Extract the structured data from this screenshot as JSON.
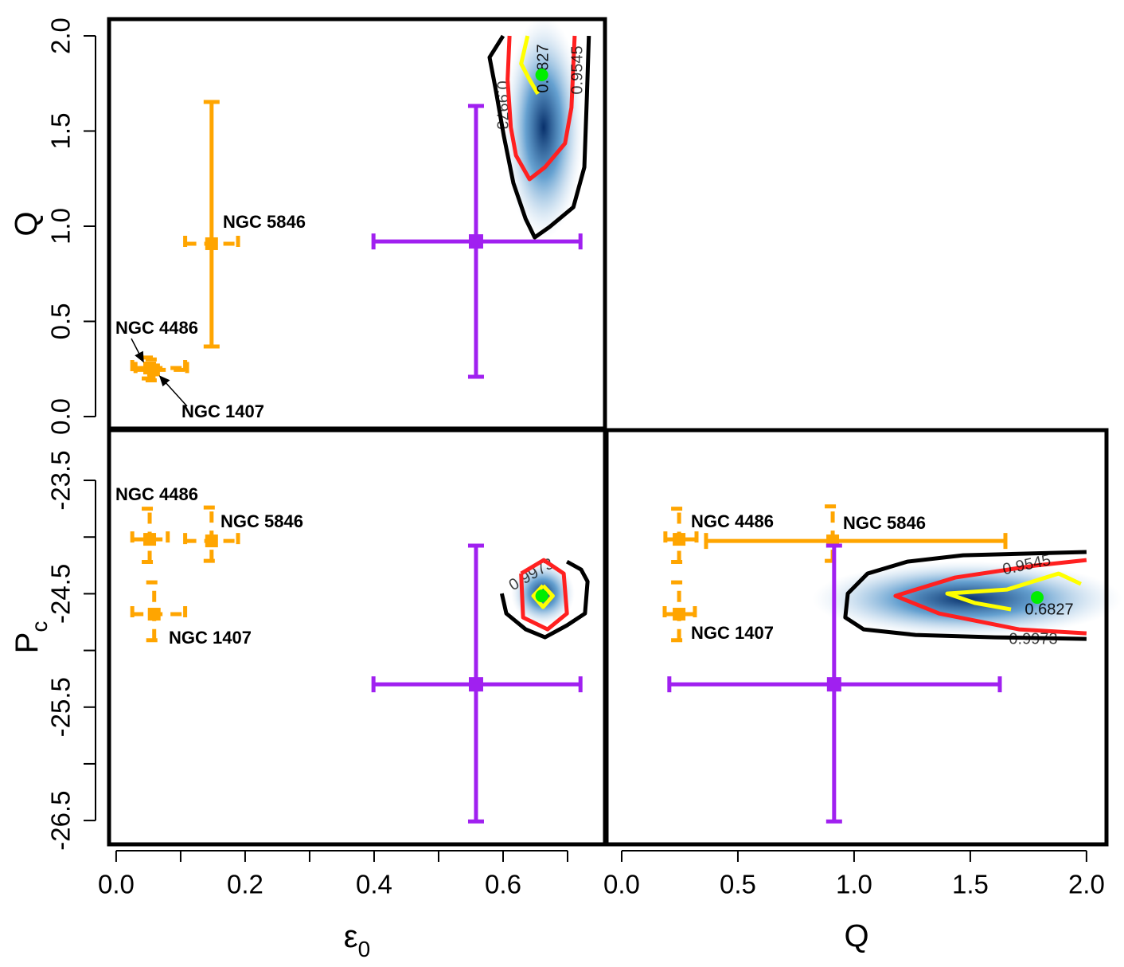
{
  "chart_data": [
    {
      "type": "scatter",
      "ylabel": "Q",
      "xlim": [
        -0.011,
        0.758
      ],
      "ylim": [
        -0.063,
        2.088
      ],
      "yticks": [
        {
          "value": 0,
          "label": "0.0"
        },
        0.5,
        {
          "value": 1,
          "label": "1.0"
        },
        1.5,
        {
          "value": 2,
          "label": "2.0"
        }
      ],
      "points": [
        {
          "label": "NGC 4486",
          "color": "#ffa500",
          "x": 0.052,
          "y": 0.255,
          "xlo": 0.025,
          "xhi": 0.107,
          "ylo": 0.2,
          "yhi": 0.31,
          "xerr_dashed": true,
          "yerr_dashed": true
        },
        {
          "label": "NGC 5846",
          "color": "#ffa500",
          "x": 0.148,
          "y": 0.908,
          "xlo": 0.107,
          "xhi": 0.189,
          "ylo": 0.368,
          "yhi": 1.653,
          "xerr_dashed": true,
          "yerr_dashed": false
        },
        {
          "label": "NGC 1407",
          "color": "#ffa500",
          "x": 0.058,
          "y": 0.245,
          "xlo": 0.03,
          "xhi": 0.11,
          "ylo": 0.19,
          "yhi": 0.3,
          "xerr_dashed": true,
          "yerr_dashed": true
        },
        {
          "color": "#a020f0",
          "x": 0.558,
          "y": 0.92,
          "xlo": 0.399,
          "xhi": 0.72,
          "ylo": 0.209,
          "yhi": 1.632,
          "xerr_dashed": false,
          "yerr_dashed": false
        }
      ],
      "contours": [
        {
          "level": 0.9973,
          "color": "#000000",
          "x": [
            0.6,
            0.579,
            0.588,
            0.601,
            0.616,
            0.635,
            0.649,
            0.672,
            0.709,
            0.726,
            0.73,
            0.733
          ],
          "y": [
            2.0,
            1.887,
            1.728,
            1.477,
            1.226,
            1.038,
            0.941,
            0.996,
            1.1,
            1.31,
            1.686,
            2.0
          ]
        },
        {
          "level": 0.9545,
          "color": "#ff2020",
          "x": [
            0.61,
            0.607,
            0.612,
            0.62,
            0.641,
            0.665,
            0.696,
            0.706,
            0.711
          ],
          "y": [
            2.0,
            1.77,
            1.519,
            1.372,
            1.247,
            1.31,
            1.435,
            1.623,
            2.0
          ]
        },
        {
          "level": 0.6827,
          "color": "#ffff00",
          "x": [
            0.638,
            0.628,
            0.641,
            0.654
          ],
          "y": [
            2.0,
            1.854,
            1.77,
            1.695
          ]
        }
      ],
      "best_fit": {
        "color": "#00ee00",
        "x": 0.66,
        "y": 1.795
      }
    },
    {
      "type": "scatter",
      "xlabel": {
        "main": "ε",
        "sub": "0"
      },
      "ylabel": {
        "main": "P",
        "sub": "c"
      },
      "xlim": [
        -0.011,
        0.758
      ],
      "ylim": [
        -26.71,
        -23.057
      ],
      "xticks": [
        {
          "value": 0,
          "label": "0.0"
        },
        0.2,
        0.4,
        0.6
      ],
      "minor_xticks": [
        0.1,
        0.3,
        0.5,
        0.7
      ],
      "yticks": [
        -23.5,
        -24.5,
        -25.5,
        -26.5
      ],
      "minor_yticks": [
        -24,
        -25,
        -26
      ],
      "points": [
        {
          "label": "NGC 4486",
          "color": "#ffa500",
          "x": 0.052,
          "y": -24.02,
          "xlo": 0.025,
          "xhi": 0.08,
          "ylo": -24.22,
          "yhi": -23.75,
          "xerr_dashed": true,
          "yerr_dashed": true
        },
        {
          "label": "NGC 5846",
          "color": "#ffa500",
          "x": 0.148,
          "y": -24.034,
          "xlo": 0.107,
          "xhi": 0.189,
          "ylo": -24.21,
          "yhi": -23.739,
          "xerr_dashed": true,
          "yerr_dashed": true
        },
        {
          "label": "NGC 1407",
          "color": "#ffa500",
          "x": 0.059,
          "y": -24.68,
          "xlo": 0.025,
          "xhi": 0.107,
          "ylo": -24.91,
          "yhi": -24.4,
          "xerr_dashed": true,
          "yerr_dashed": true
        },
        {
          "color": "#a020f0",
          "x": 0.558,
          "y": -25.299,
          "xlo": 0.399,
          "xhi": 0.72,
          "ylo": -26.508,
          "yhi": -24.076,
          "xerr_dashed": false,
          "yerr_dashed": false
        }
      ],
      "contours": [
        {
          "level": 0.9973,
          "color": "#000000",
          "x": [
            0.699,
            0.721,
            0.731,
            0.727,
            0.699,
            0.665,
            0.635,
            0.605,
            0.598
          ],
          "y": [
            -24.217,
            -24.287,
            -24.392,
            -24.674,
            -24.779,
            -24.884,
            -24.814,
            -24.674,
            -24.498
          ]
        },
        {
          "color": "#ff2020",
          "x": [
            0.628,
            0.663,
            0.694,
            0.699,
            0.669,
            0.631,
            0.628
          ],
          "y": [
            -24.322,
            -24.203,
            -24.322,
            -24.674,
            -24.814,
            -24.709,
            -24.322
          ]
        },
        {
          "color": "#ffff00",
          "x": [
            0.662,
            0.677,
            0.662,
            0.647,
            0.662
          ],
          "y": [
            -24.428,
            -24.519,
            -24.617,
            -24.519,
            -24.428
          ]
        }
      ],
      "best_fit": {
        "color": "#00ee00",
        "x": 0.66,
        "y": -24.519
      }
    },
    {
      "type": "scatter",
      "xlabel": "Q",
      "xlim": [
        -0.065,
        2.086
      ],
      "ylim": [
        -26.71,
        -23.057
      ],
      "xticks": [
        {
          "value": 0,
          "label": "0.0"
        },
        0.5,
        {
          "value": 1,
          "label": "1.0"
        },
        1.5,
        {
          "value": 2,
          "label": "2.0"
        }
      ],
      "points": [
        {
          "label": "NGC 4486",
          "color": "#ffa500",
          "x": 0.247,
          "y": -24.02,
          "xlo": 0.188,
          "xhi": 0.322,
          "ylo": -24.22,
          "yhi": -23.75,
          "xerr_dashed": true,
          "yerr_dashed": true
        },
        {
          "label": "NGC 5846",
          "color": "#ffa500",
          "x": 0.908,
          "y": -24.034,
          "xlo": 0.363,
          "xhi": 1.651,
          "ylo": -24.21,
          "yhi": -23.73,
          "xerr_dashed": false,
          "yerr_dashed": true
        },
        {
          "label": "NGC 1407",
          "color": "#ffa500",
          "x": 0.247,
          "y": -24.68,
          "xlo": 0.185,
          "xhi": 0.315,
          "ylo": -24.91,
          "yhi": -24.4,
          "xerr_dashed": true,
          "yerr_dashed": true
        },
        {
          "color": "#a020f0",
          "x": 0.914,
          "y": -25.299,
          "xlo": 0.205,
          "xhi": 1.627,
          "ylo": -26.508,
          "yhi": -24.076,
          "xerr_dashed": false,
          "yerr_dashed": false
        }
      ],
      "contours": [
        {
          "level": 0.9973,
          "color": "#000000",
          "x": [
            2.0,
            1.469,
            1.229,
            1.058,
            0.973,
            0.962,
            1.041,
            1.264,
            1.606,
            2.0
          ],
          "y": [
            -24.132,
            -24.161,
            -24.217,
            -24.322,
            -24.498,
            -24.709,
            -24.814,
            -24.863,
            -24.884,
            -24.898
          ]
        },
        {
          "level": 0.9545,
          "color": "#ff2020",
          "x": [
            2.0,
            1.777,
            1.435,
            1.178,
            1.366,
            1.709,
            2.0
          ],
          "y": [
            -24.203,
            -24.252,
            -24.357,
            -24.519,
            -24.674,
            -24.814,
            -24.849
          ]
        },
        {
          "level": 0.6827,
          "color": "#ffff00",
          "x": [
            1.976,
            1.88,
            1.658,
            1.401,
            1.521,
            1.675
          ],
          "y": [
            -24.414,
            -24.322,
            -24.463,
            -24.498,
            -24.582,
            -24.638
          ]
        }
      ],
      "best_fit": {
        "color": "#00ee00",
        "x": 1.788,
        "y": -24.533
      }
    }
  ]
}
